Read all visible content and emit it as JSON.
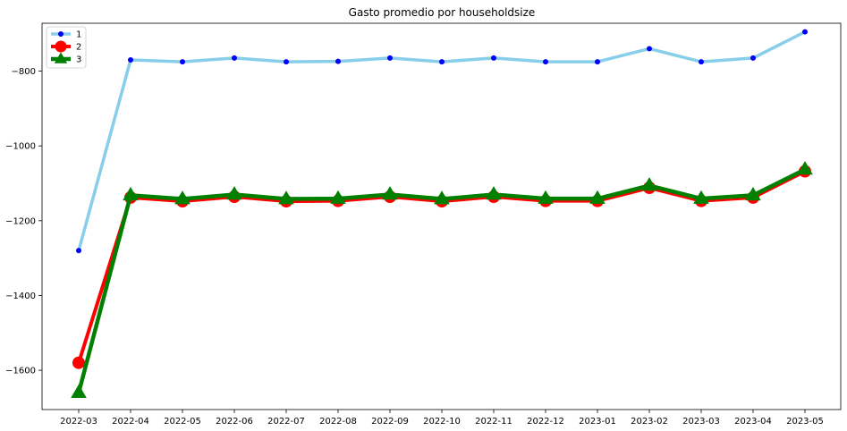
{
  "chart_data": {
    "type": "line",
    "title": "Gasto promedio por householdsize",
    "xlabel": "",
    "ylabel": "",
    "categories": [
      "2022-03",
      "2022-04",
      "2022-05",
      "2022-06",
      "2022-07",
      "2022-08",
      "2022-09",
      "2022-10",
      "2022-11",
      "2022-12",
      "2023-01",
      "2023-02",
      "2023-03",
      "2023-04",
      "2023-05"
    ],
    "ylim": [
      -1705,
      -672
    ],
    "yticks": [
      -800,
      -1000,
      -1200,
      -1400,
      -1600
    ],
    "ytick_labels": [
      "−800",
      "−1000",
      "−1200",
      "−1400",
      "−1600"
    ],
    "grid": false,
    "legend_position": "top-left",
    "series": [
      {
        "name": "1",
        "color": "#87ceeb",
        "marker": "circle",
        "marker_color": "#0000ff",
        "values": [
          -1280,
          -770,
          -775,
          -765,
          -775,
          -774,
          -765,
          -775,
          -765,
          -775,
          -775,
          -740,
          -775,
          -765,
          -695
        ]
      },
      {
        "name": "2",
        "color": "#ff0000",
        "marker": "circle",
        "marker_color": "#ff0000",
        "values": [
          -1580,
          -1138,
          -1148,
          -1136,
          -1148,
          -1147,
          -1136,
          -1148,
          -1136,
          -1147,
          -1147,
          -1112,
          -1147,
          -1138,
          -1068
        ]
      },
      {
        "name": "3",
        "color": "#008000",
        "marker": "triangle",
        "marker_color": "#008000",
        "values": [
          -1660,
          -1132,
          -1142,
          -1130,
          -1142,
          -1141,
          -1130,
          -1142,
          -1130,
          -1141,
          -1141,
          -1106,
          -1141,
          -1132,
          -1063
        ]
      }
    ]
  }
}
